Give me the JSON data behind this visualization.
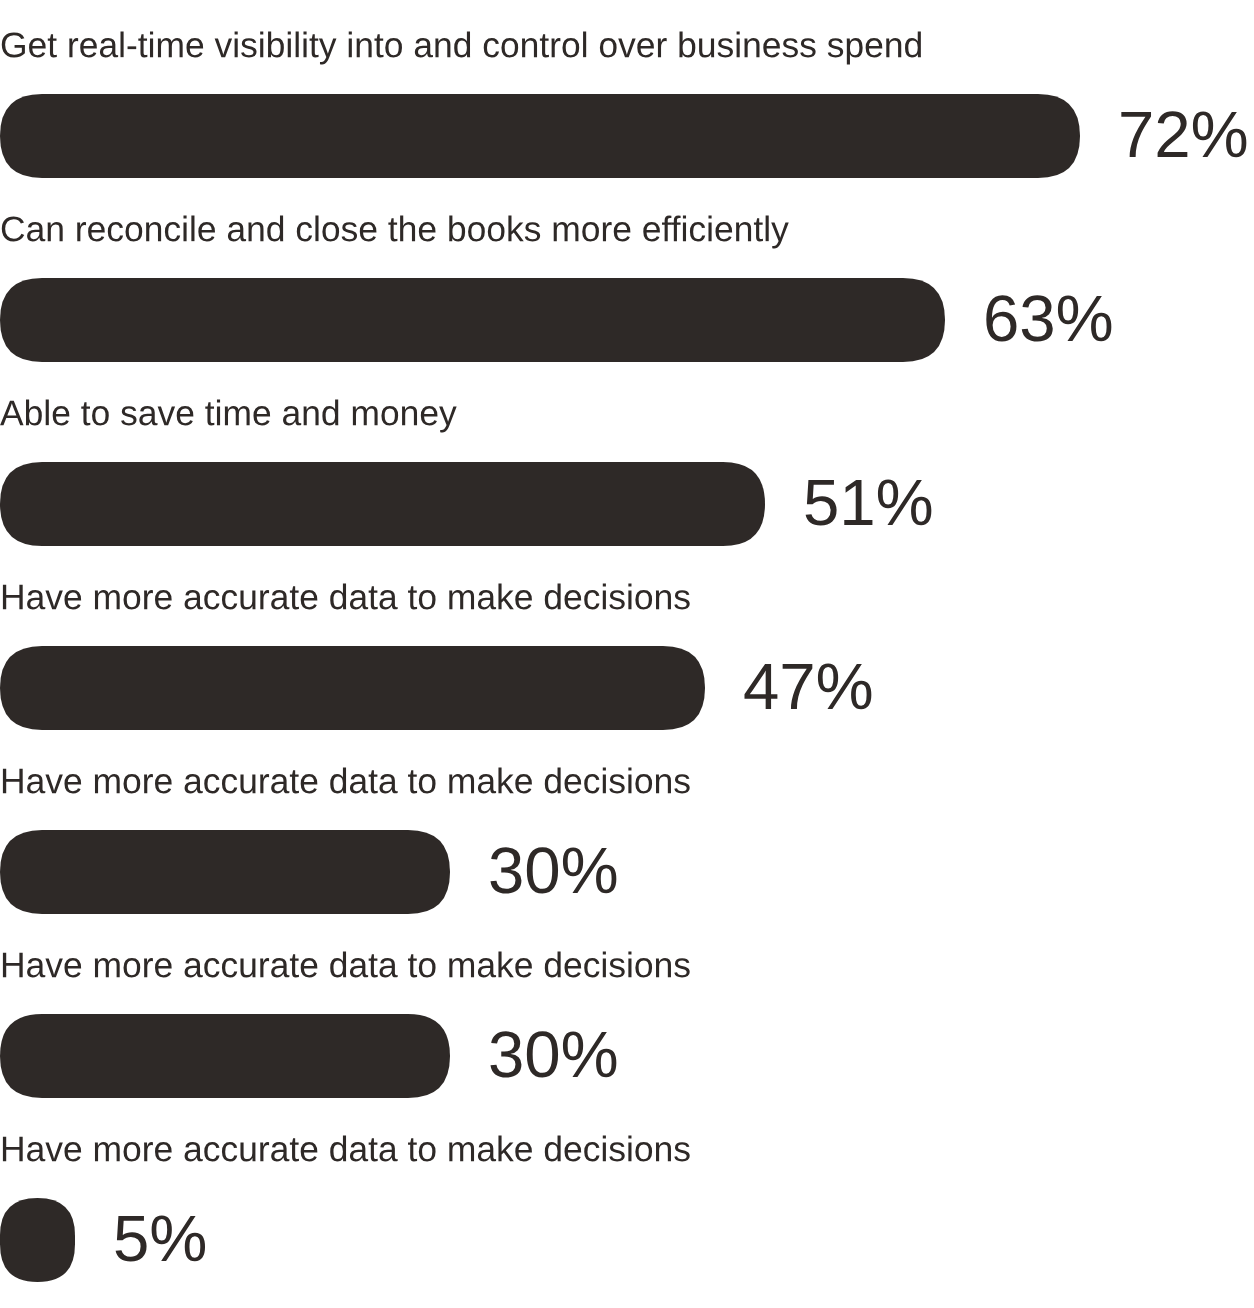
{
  "chart_data": {
    "type": "bar",
    "orientation": "horizontal",
    "categories": [
      "Get real-time visibility into and control over business spend",
      "Can reconcile and close the books more efficiently",
      "Able to save time and money",
      "Have more accurate data to make decisions",
      "Have more accurate data to make decisions",
      "Have more accurate data to make decisions",
      "Have more accurate data to make decisions"
    ],
    "values": [
      72,
      63,
      51,
      47,
      30,
      30,
      5
    ],
    "value_labels": [
      "72%",
      "63%",
      "51%",
      "47%",
      "30%",
      "30%",
      "5%"
    ],
    "color": "#2e2927"
  }
}
